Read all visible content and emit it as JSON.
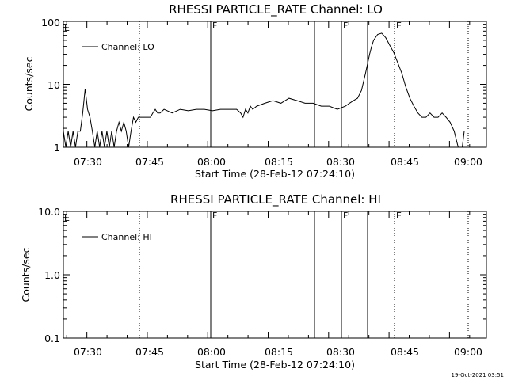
{
  "charts": [
    {
      "id": "lo",
      "title": "RHESSI PARTICLE_RATE Channel: LO",
      "ylabel": "Counts/sec",
      "xlabel": "Start Time (28-Feb-12 07:24:10)",
      "legend": "Channel: LO",
      "yticks": [
        "1",
        "10",
        "100"
      ],
      "xticks": [
        "07:30",
        "07:45",
        "08:00",
        "08:15",
        "08:30",
        "08:45",
        "09:00"
      ]
    },
    {
      "id": "hi",
      "title": "RHESSI PARTICLE_RATE Channel: HI",
      "ylabel": "Counts/sec",
      "xlabel": "Start Time (28-Feb-12 07:24:10)",
      "legend": "Channel: HI",
      "yticks": [
        "0.1",
        "1.0",
        "10.0"
      ],
      "xticks": [
        "07:30",
        "07:45",
        "08:00",
        "08:15",
        "08:30",
        "08:45",
        "09:00"
      ]
    }
  ],
  "markers": {
    "E1": "E",
    "F1": "F",
    "F2": "F",
    "E2": "E"
  },
  "footer": {
    "timestamp": "19-Oct-2021 03:51"
  },
  "chart_data": [
    {
      "type": "line",
      "title": "RHESSI PARTICLE_RATE Channel: LO",
      "xlabel": "Start Time (28-Feb-12 07:24:10)",
      "ylabel": "Counts/sec",
      "yscale": "log",
      "ylim": [
        1,
        100
      ],
      "xlim_minutes_since_0724_10": [
        0,
        105
      ],
      "x_ticks": [
        "07:30",
        "07:45",
        "08:00",
        "08:15",
        "08:30",
        "08:45",
        "09:00"
      ],
      "legend": "top-left",
      "series": [
        {
          "name": "Channel: LO",
          "x": [
            0,
            0.6,
            1.2,
            1.8,
            2.4,
            3.0,
            3.6,
            4.2,
            4.8,
            5.4,
            6.0,
            6.6,
            7.2,
            7.8,
            8.4,
            9.0,
            9.6,
            10.2,
            10.8,
            11.4,
            12.0,
            12.6,
            13.2,
            13.8,
            14.4,
            15.0,
            15.6,
            16.2,
            16.8,
            17.4,
            18.0,
            18.6,
            19.2,
            19.8,
            20.4,
            21.0,
            21.6,
            22.2,
            22.8,
            23.4,
            24.0,
            25,
            27,
            29,
            31,
            33,
            35,
            37,
            39,
            41,
            43,
            44,
            44.6,
            45.2,
            45.8,
            46.4,
            47,
            48,
            50,
            52,
            54,
            56,
            58,
            60,
            62,
            64,
            66,
            68,
            70,
            71,
            72,
            73,
            74,
            75,
            76,
            76.5,
            77,
            78,
            79,
            80,
            81,
            82,
            83,
            84,
            85,
            86,
            87,
            88,
            89,
            90,
            91,
            92,
            93,
            94,
            95,
            96,
            97,
            98,
            98.5,
            99,
            99.5
          ],
          "values": [
            1.8,
            1.0,
            1.8,
            1.0,
            1.8,
            1.0,
            1.8,
            1.8,
            3.5,
            8.5,
            4.0,
            3.0,
            1.8,
            1.0,
            1.8,
            1.0,
            1.8,
            1.0,
            1.8,
            1.0,
            1.8,
            1.0,
            1.8,
            2.5,
            1.8,
            2.5,
            1.8,
            1.0,
            1.8,
            3.0,
            2.5,
            3.0,
            3.0,
            3.0,
            3.0,
            3.0,
            3.0,
            3.5,
            4.0,
            3.5,
            3.5,
            4.0,
            3.5,
            4.0,
            3.8,
            4.0,
            4.0,
            3.8,
            4.0,
            4.0,
            4.0,
            3.5,
            3.0,
            4.0,
            3.5,
            4.5,
            4.0,
            4.5,
            5.0,
            5.5,
            5.0,
            6.0,
            5.5,
            5.0,
            5.0,
            4.5,
            4.5,
            4.0,
            4.5,
            5.0,
            5.5,
            6.0,
            8.0,
            15.0,
            30.0,
            40.0,
            50.0,
            62.0,
            65.0,
            55.0,
            42.0,
            32.0,
            22.0,
            15.0,
            9.0,
            6.0,
            4.5,
            3.5,
            3.0,
            3.0,
            3.5,
            3.0,
            3.0,
            3.5,
            3.0,
            2.5,
            1.8,
            1.0,
            1.0,
            1.0,
            1.8
          ]
        }
      ],
      "markers": [
        {
          "label": "E",
          "time": "07:24:10",
          "style": "dotted"
        },
        {
          "label": "",
          "time": "07:42",
          "style": "dotted"
        },
        {
          "label": "F",
          "time": "07:59",
          "style": "solid"
        },
        {
          "label": "",
          "time": "08:23",
          "style": "solid"
        },
        {
          "label": "F",
          "time": "08:29",
          "style": "solid"
        },
        {
          "label": "",
          "time": "08:35",
          "style": "solid"
        },
        {
          "label": "E",
          "time": "08:41",
          "style": "dotted"
        },
        {
          "label": "",
          "time": "08:59",
          "style": "dotted"
        }
      ]
    },
    {
      "type": "line",
      "title": "RHESSI PARTICLE_RATE Channel: HI",
      "xlabel": "Start Time (28-Feb-12 07:24:10)",
      "ylabel": "Counts/sec",
      "yscale": "log",
      "ylim": [
        0.1,
        10
      ],
      "xlim_minutes_since_0724_10": [
        0,
        105
      ],
      "x_ticks": [
        "07:30",
        "07:45",
        "08:00",
        "08:15",
        "08:30",
        "08:45",
        "09:00"
      ],
      "legend": "top-left",
      "series": [
        {
          "name": "Channel: HI",
          "x": [],
          "values": []
        }
      ],
      "markers": [
        {
          "label": "E",
          "time": "07:24:10",
          "style": "dotted"
        },
        {
          "label": "",
          "time": "07:42",
          "style": "dotted"
        },
        {
          "label": "F",
          "time": "07:59",
          "style": "solid"
        },
        {
          "label": "",
          "time": "08:23",
          "style": "solid"
        },
        {
          "label": "F",
          "time": "08:29",
          "style": "solid"
        },
        {
          "label": "",
          "time": "08:35",
          "style": "solid"
        },
        {
          "label": "E",
          "time": "08:41",
          "style": "dotted"
        },
        {
          "label": "",
          "time": "08:59",
          "style": "dotted"
        }
      ]
    }
  ]
}
